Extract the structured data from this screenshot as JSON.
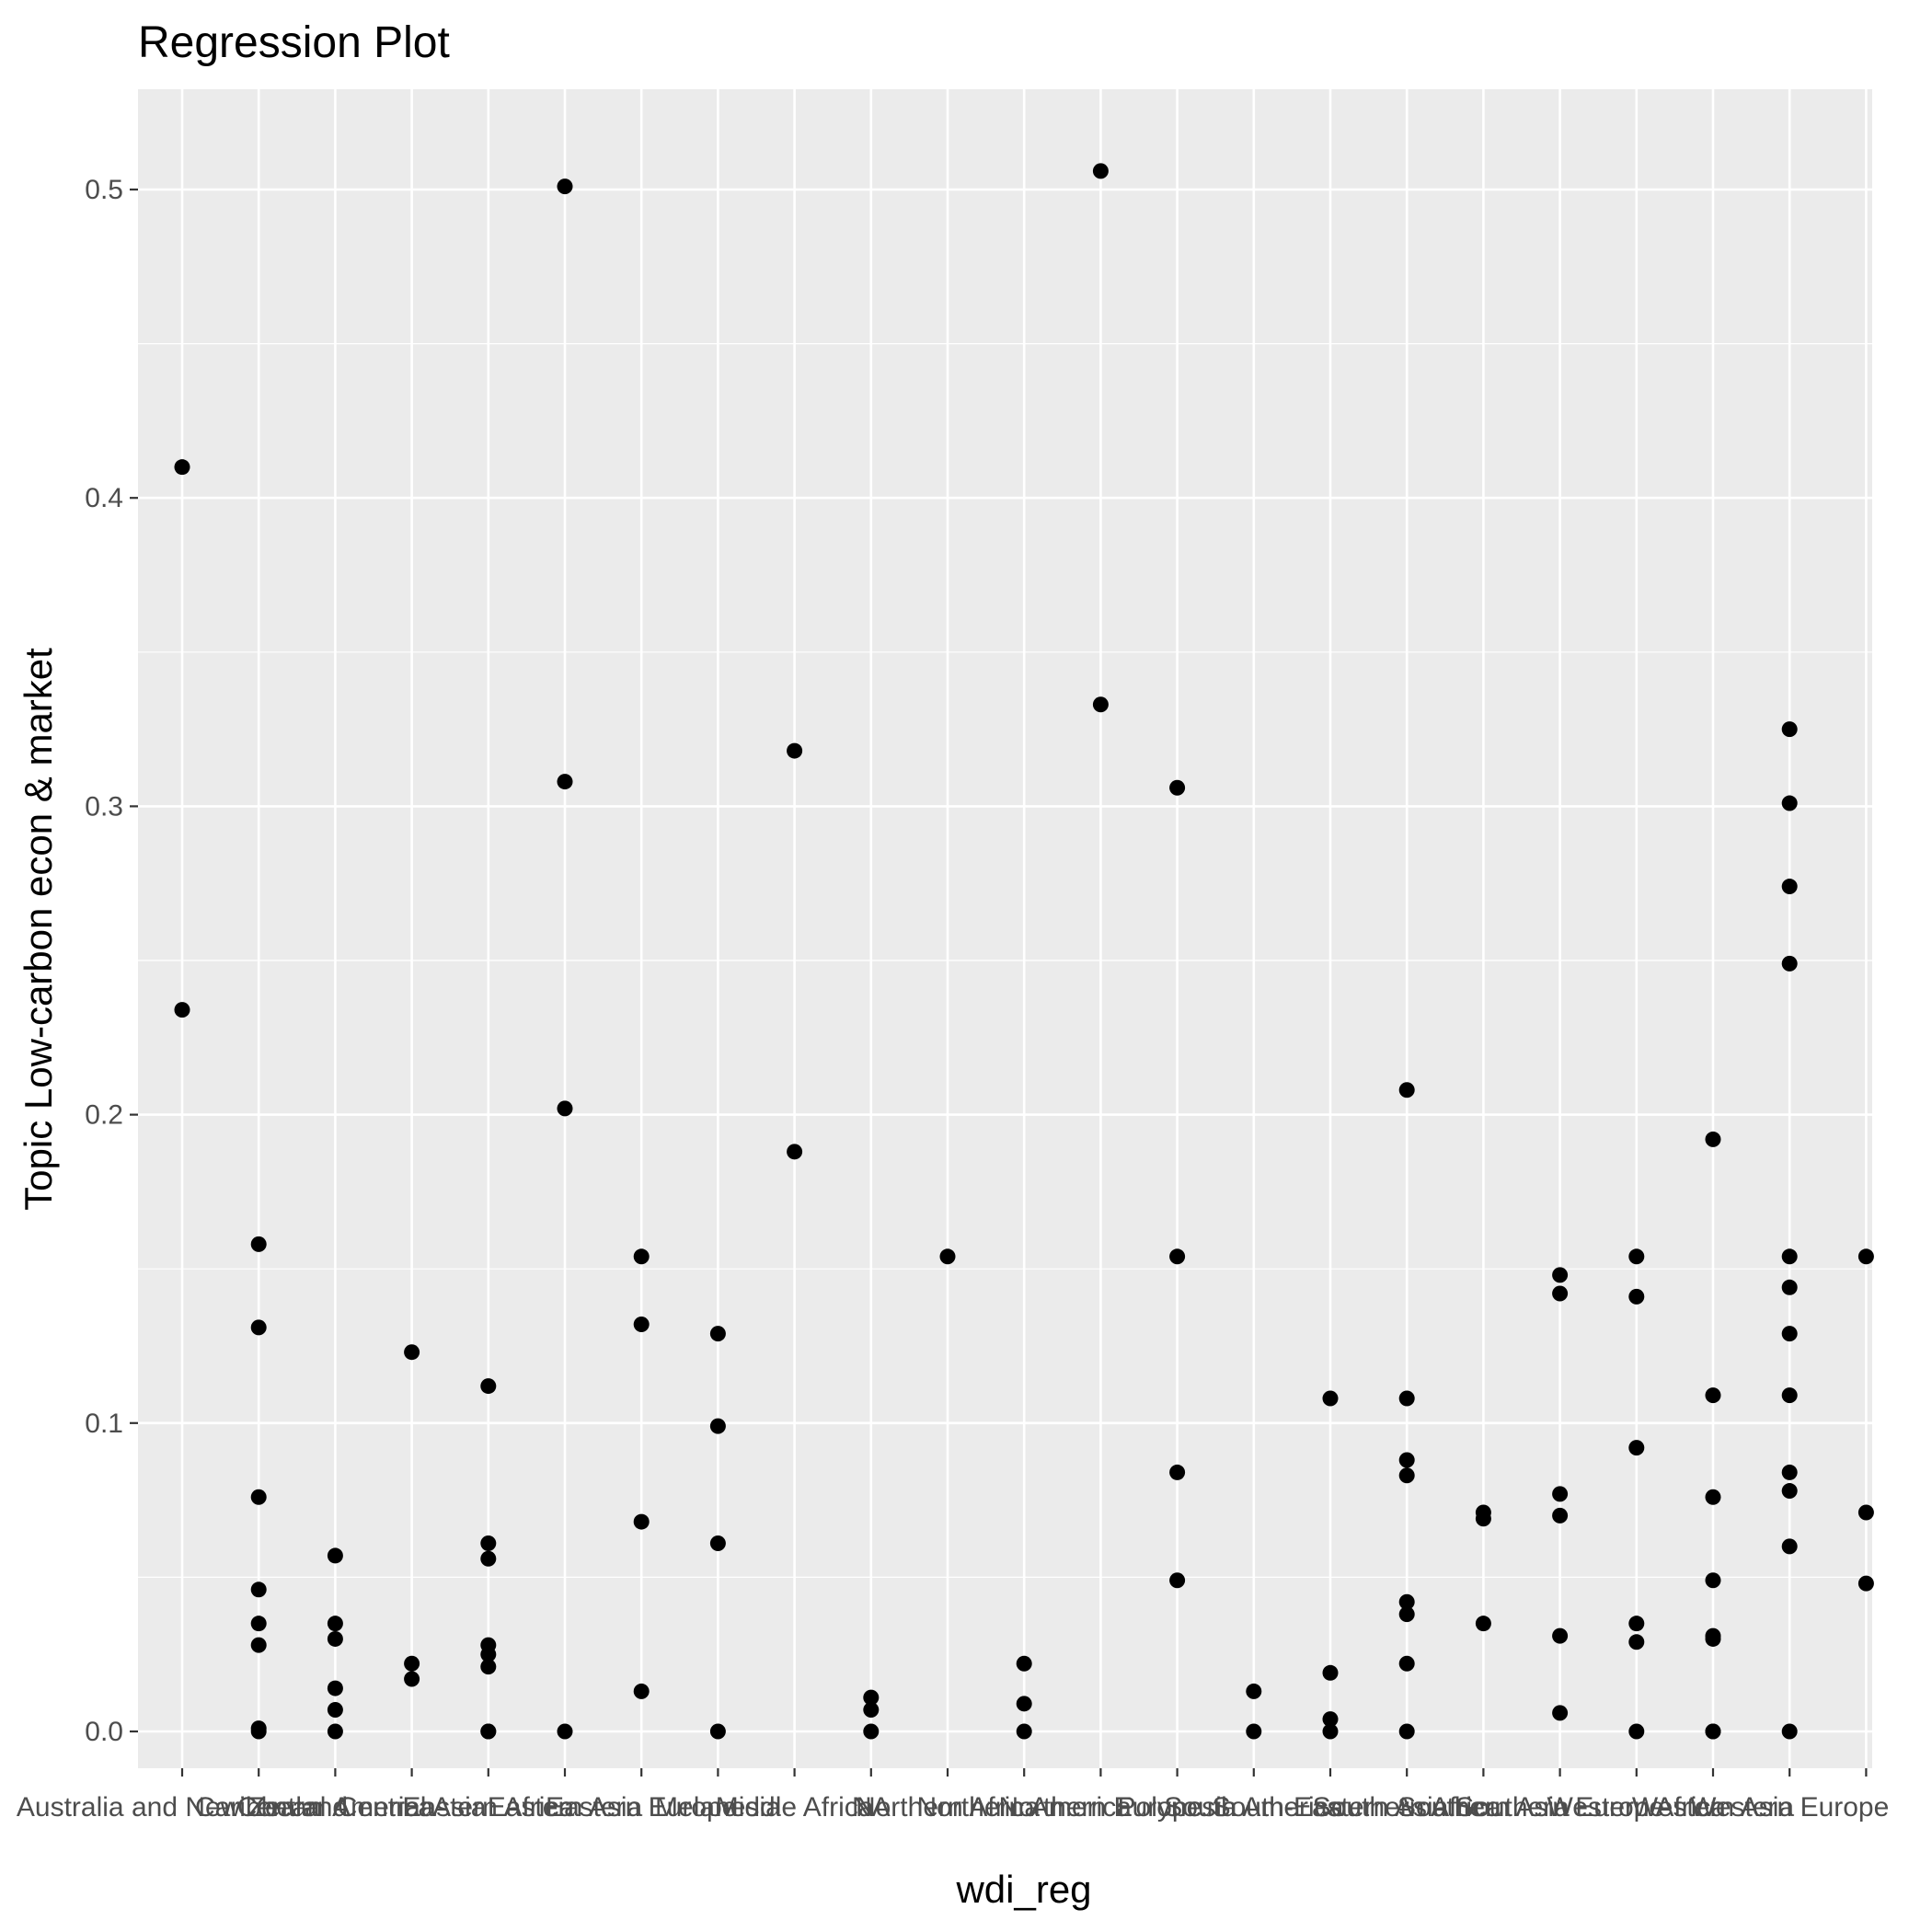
{
  "chart_data": {
    "type": "scatter",
    "title": "Regression Plot",
    "xlabel": "wdi_reg",
    "ylabel": "Topic Low-carbon econ & market",
    "ylim": [
      -0.02,
      0.53
    ],
    "yticks": [
      0.0,
      0.1,
      0.2,
      0.3,
      0.4,
      0.5
    ],
    "ytick_labels": [
      "0.0",
      "0.1",
      "0.2",
      "0.3",
      "0.4",
      "0.5"
    ],
    "grid": true,
    "categories": [
      "Australia and New Zealand",
      "Caribbean",
      "Central America",
      "Central Asia",
      "Eastern Africa",
      "Eastern Asia",
      "Eastern Europe",
      "Melanesia",
      "Middle Africa",
      "NA",
      "Northern Africa",
      "Northern America",
      "Northern Europe",
      "Polynesia",
      "South America",
      "South-Eastern Asia",
      "Southern Africa",
      "Southern Asia",
      "Southern Europe",
      "Western Africa",
      "Western Asia",
      "Western Europe"
    ],
    "points": [
      {
        "x": "Australia and New Zealand",
        "y": [
          0.41,
          0.234
        ]
      },
      {
        "x": "Caribbean",
        "y": [
          0.158,
          0.131,
          0.076,
          0.046,
          0.035,
          0.028,
          0.001,
          0.0
        ]
      },
      {
        "x": "Central America",
        "y": [
          0.057,
          0.035,
          0.03,
          0.014,
          0.007,
          0.0
        ]
      },
      {
        "x": "Central Asia",
        "y": [
          0.123,
          0.022,
          0.017
        ]
      },
      {
        "x": "Eastern Africa",
        "y": [
          0.112,
          0.061,
          0.056,
          0.028,
          0.025,
          0.021,
          0.0,
          0.0
        ]
      },
      {
        "x": "Eastern Asia",
        "y": [
          0.501,
          0.308,
          0.202,
          0.0
        ]
      },
      {
        "x": "Eastern Europe",
        "y": [
          0.154,
          0.132,
          0.068,
          0.013
        ]
      },
      {
        "x": "Melanesia",
        "y": [
          0.129,
          0.099,
          0.061,
          0.0
        ]
      },
      {
        "x": "Middle Africa",
        "y": [
          0.318,
          0.188
        ]
      },
      {
        "x": "NA",
        "y": [
          0.011,
          0.007,
          0.0
        ]
      },
      {
        "x": "Northern Africa",
        "y": [
          0.154
        ]
      },
      {
        "x": "Northern America",
        "y": [
          0.022,
          0.009,
          0.0
        ]
      },
      {
        "x": "Northern Europe",
        "y": [
          0.506,
          0.333
        ]
      },
      {
        "x": "Polynesia",
        "y": [
          0.306,
          0.154,
          0.084,
          0.049
        ]
      },
      {
        "x": "South America",
        "y": [
          0.013,
          0.0
        ]
      },
      {
        "x": "South-Eastern Asia",
        "y": [
          0.108,
          0.019,
          0.004,
          0.0
        ]
      },
      {
        "x": "Southern Africa",
        "y": [
          0.208,
          0.108,
          0.088,
          0.083,
          0.042,
          0.038,
          0.022,
          0.0
        ]
      },
      {
        "x": "Southern Asia",
        "y": [
          0.071,
          0.069,
          0.035
        ]
      },
      {
        "x": "Southern Europe",
        "y": [
          0.148,
          0.142,
          0.077,
          0.07,
          0.031,
          0.006
        ]
      },
      {
        "x": "Western Africa",
        "y": [
          0.154,
          0.141,
          0.092,
          0.035,
          0.029,
          0.0
        ]
      },
      {
        "x": "Western Asia",
        "y": [
          0.192,
          0.109,
          0.076,
          0.049,
          0.031,
          0.03,
          0.0,
          0.0
        ]
      },
      {
        "x": "Western Europe",
        "y": [
          0.325,
          0.301,
          0.274,
          0.249,
          0.154,
          0.144,
          0.129,
          0.109,
          0.084,
          0.078,
          0.06,
          0.0
        ]
      },
      {
        "x": "",
        "y": [
          0.154,
          0.071,
          0.048
        ]
      }
    ]
  },
  "colors": {
    "panel": "#ebebeb",
    "grid_major": "#ffffff",
    "point": "#000000",
    "tick_text": "#4d4d4d"
  }
}
